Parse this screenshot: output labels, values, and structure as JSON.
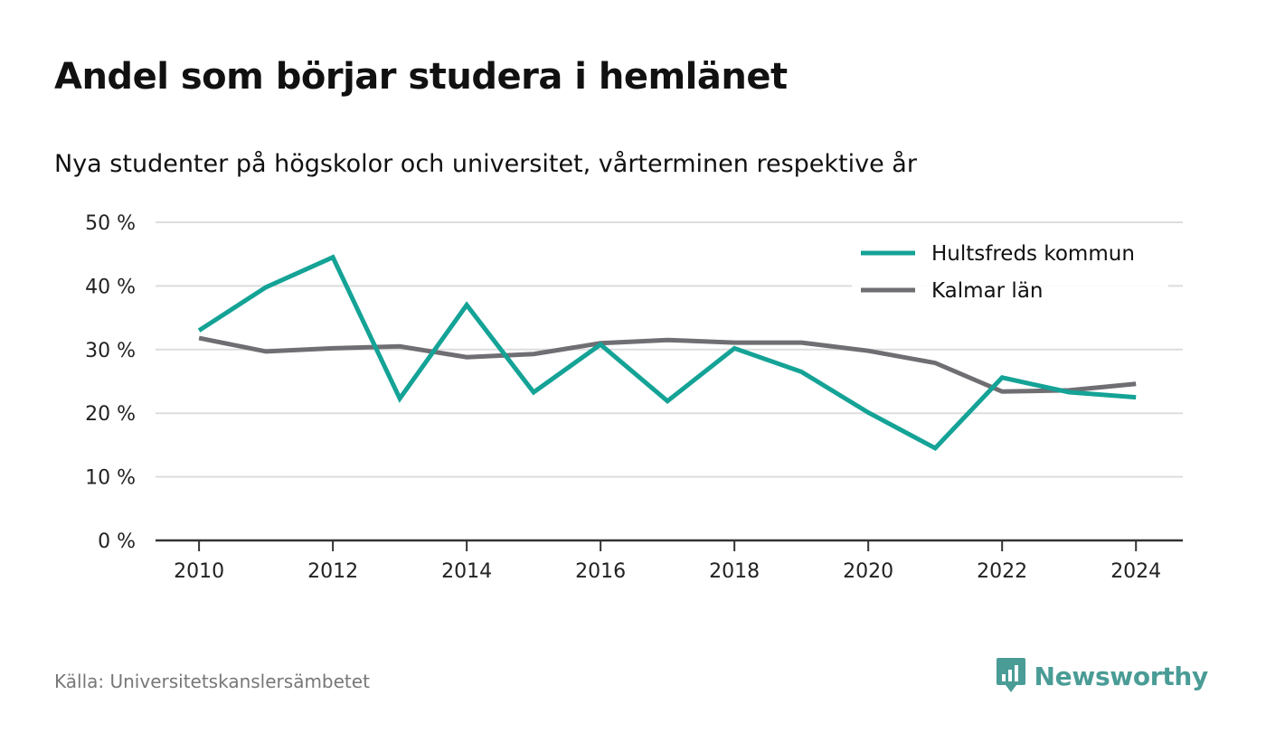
{
  "title": "Andel som börjar studera i hemlänet",
  "subtitle": "Nya studenter på högskolor och universitet, vårterminen respektive år",
  "source": "Källa: Universitetskanslersämbetet",
  "brand": "Newsworthy",
  "colors": {
    "hultsfred": "#14a396",
    "kalmar": "#6f6e73",
    "grid": "#dddddd",
    "axis": "#333333",
    "brand": "#4a9c96"
  },
  "chart_data": {
    "type": "line",
    "x": [
      2010,
      2011,
      2012,
      2013,
      2014,
      2015,
      2016,
      2017,
      2018,
      2019,
      2020,
      2021,
      2022,
      2023,
      2024
    ],
    "x_ticks": [
      2010,
      2012,
      2014,
      2016,
      2018,
      2020,
      2022,
      2024
    ],
    "x_tick_labels": [
      "2010",
      "2012",
      "2014",
      "2016",
      "2018",
      "2020",
      "2022",
      "2024"
    ],
    "y_ticks": [
      0,
      10,
      20,
      30,
      40,
      50
    ],
    "y_tick_labels": [
      "0 %",
      "10 %",
      "20 %",
      "30 %",
      "40 %",
      "50 %"
    ],
    "xlim": [
      2009.35,
      2024.7
    ],
    "ylim": [
      0,
      50
    ],
    "grid": true,
    "legend_position": "top-right",
    "series": [
      {
        "name": "Hultsfreds kommun",
        "color_key": "hultsfred",
        "values": [
          33.0,
          39.8,
          44.5,
          22.3,
          37.0,
          23.3,
          30.8,
          21.9,
          30.2,
          26.5,
          20.1,
          14.5,
          25.6,
          23.3,
          22.5
        ]
      },
      {
        "name": "Kalmar län",
        "color_key": "kalmar",
        "values": [
          31.8,
          29.7,
          30.2,
          30.5,
          28.8,
          29.3,
          31.0,
          31.5,
          31.1,
          31.1,
          29.8,
          27.9,
          23.4,
          23.6,
          24.6
        ]
      }
    ]
  }
}
